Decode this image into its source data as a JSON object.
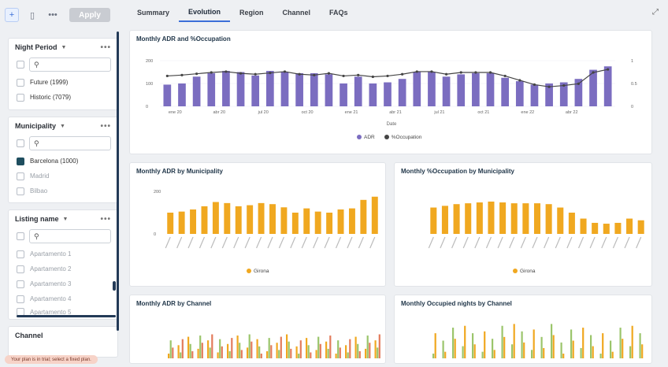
{
  "toolbar": {
    "apply_label": "Apply"
  },
  "filters": {
    "night_period": {
      "title": "Night Period",
      "search_placeholder": "",
      "items": [
        "Future (1999)",
        "Historic (7079)"
      ]
    },
    "municipality": {
      "title": "Municipality",
      "items": [
        "Barcelona (1000)",
        "Madrid",
        "Bilbao"
      ]
    },
    "listing_name": {
      "title": "Listing name",
      "items": [
        "Apartamento 1",
        "Apartamento 2",
        "Apartamento 3",
        "Apartamento 4",
        "Apartamento 5"
      ]
    },
    "channel": {
      "title": "Channel"
    }
  },
  "status": {
    "text": "Your plan is in trial; select a fixed plan."
  },
  "tabs": [
    "Summary",
    "Evolution",
    "Region",
    "Channel",
    "FAQs"
  ],
  "colors": {
    "purple": "#7b6dc0",
    "orange": "#f0a820",
    "line": "#444444",
    "brand": "#1f4e5f"
  },
  "main_chart": {
    "title": "Monthly ADR and %Occupation",
    "xlabel": "Date",
    "legend": [
      "ADR",
      "%Occupation"
    ]
  },
  "mun_adr_chart": {
    "title": "Monthly ADR by Municipality",
    "legend": [
      "Girona"
    ]
  },
  "mun_occ_chart": {
    "title": "Monthly %Occupation by Municipality",
    "legend": [
      "Girona"
    ]
  },
  "ch_adr_chart": {
    "title": "Monthly ADR by Channel"
  },
  "ch_nights_chart": {
    "title": "Monthly Occupied nights by Channel"
  },
  "chart_data": [
    {
      "type": "bar",
      "title": "Monthly ADR and %Occupation",
      "xlabel": "Date",
      "ylim": [
        0,
        200
      ],
      "y2lim": [
        0,
        1
      ],
      "x_tick_labels": [
        "ene 20",
        "abr 20",
        "jul 20",
        "oct 20",
        "ene 21",
        "abr 21",
        "jul 21",
        "oct 21",
        "ene 22",
        "abr 22"
      ],
      "series": [
        {
          "name": "ADR",
          "type": "bar",
          "values": [
            95,
            100,
            130,
            145,
            155,
            150,
            135,
            155,
            150,
            145,
            145,
            140,
            100,
            130,
            100,
            105,
            120,
            150,
            150,
            130,
            140,
            145,
            145,
            125,
            110,
            95,
            100,
            105,
            120,
            160,
            175
          ]
        },
        {
          "name": "%Occupation",
          "type": "line",
          "values": [
            0.7,
            0.72,
            0.75,
            0.78,
            0.8,
            0.76,
            0.74,
            0.77,
            0.8,
            0.74,
            0.72,
            0.76,
            0.7,
            0.72,
            0.68,
            0.7,
            0.74,
            0.8,
            0.8,
            0.74,
            0.78,
            0.78,
            0.78,
            0.7,
            0.6,
            0.5,
            0.45,
            0.48,
            0.52,
            0.78,
            0.85
          ]
        }
      ]
    },
    {
      "type": "bar",
      "title": "Monthly ADR by Municipality",
      "ylim": [
        0,
        200
      ],
      "series": [
        {
          "name": "Girona",
          "values": [
            100,
            105,
            115,
            130,
            150,
            145,
            130,
            135,
            145,
            140,
            125,
            100,
            120,
            105,
            100,
            115,
            120,
            160,
            175
          ]
        }
      ]
    },
    {
      "type": "bar",
      "title": "Monthly %Occupation by Municipality",
      "series": [
        {
          "name": "Girona",
          "values": [
            0.62,
            0.66,
            0.7,
            0.72,
            0.74,
            0.76,
            0.74,
            0.72,
            0.72,
            0.72,
            0.7,
            0.62,
            0.5,
            0.36,
            0.26,
            0.24,
            0.26,
            0.36,
            0.32
          ]
        }
      ]
    }
  ]
}
